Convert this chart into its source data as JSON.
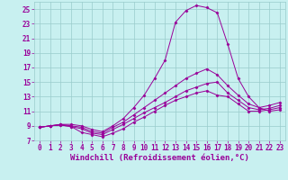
{
  "xlabel": "Windchill (Refroidissement éolien,°C)",
  "background_color": "#c8f0f0",
  "grid_color": "#99cccc",
  "line_color": "#990099",
  "xlim": [
    -0.5,
    23.5
  ],
  "ylim": [
    7,
    26
  ],
  "xticks": [
    0,
    1,
    2,
    3,
    4,
    5,
    6,
    7,
    8,
    9,
    10,
    11,
    12,
    13,
    14,
    15,
    16,
    17,
    18,
    19,
    20,
    21,
    22,
    23
  ],
  "yticks": [
    7,
    9,
    11,
    13,
    15,
    17,
    19,
    21,
    23,
    25
  ],
  "series": [
    [
      8.8,
      9.0,
      9.1,
      8.9,
      8.1,
      7.8,
      7.5,
      8.0,
      8.6,
      9.5,
      10.2,
      11.0,
      11.8,
      12.5,
      13.0,
      13.5,
      13.8,
      13.2,
      13.0,
      12.0,
      11.0,
      11.0,
      11.2,
      11.5
    ],
    [
      8.8,
      9.0,
      9.1,
      8.9,
      8.6,
      8.0,
      7.8,
      8.5,
      9.2,
      10.0,
      10.8,
      11.5,
      12.2,
      13.0,
      13.8,
      14.3,
      14.8,
      15.0,
      13.5,
      12.5,
      11.5,
      11.2,
      11.4,
      11.8
    ],
    [
      8.8,
      9.0,
      9.2,
      9.0,
      8.8,
      8.2,
      8.0,
      8.8,
      9.5,
      10.5,
      11.5,
      12.5,
      13.5,
      14.5,
      15.5,
      16.2,
      16.8,
      16.0,
      14.5,
      13.2,
      12.0,
      11.5,
      11.8,
      12.2
    ],
    [
      8.8,
      9.0,
      9.2,
      9.2,
      9.0,
      8.5,
      8.2,
      9.0,
      10.0,
      11.5,
      13.2,
      15.5,
      18.0,
      23.2,
      24.8,
      25.5,
      25.2,
      24.5,
      20.2,
      15.5,
      13.0,
      11.5,
      11.0,
      11.2
    ]
  ],
  "tick_fontsize": 5.5,
  "xlabel_fontsize": 6.5
}
